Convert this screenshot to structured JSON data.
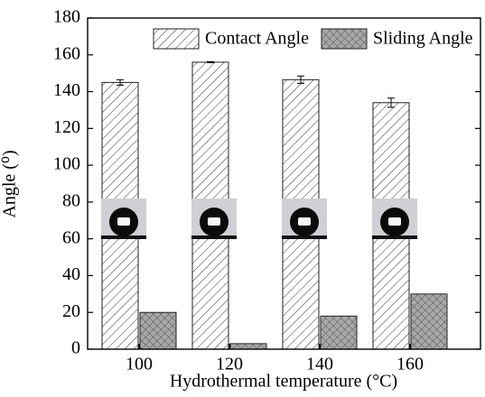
{
  "chart_data": {
    "type": "bar",
    "xlabel": "Hydrothermal temperature (°C)",
    "ylabel": "Angle (⁰)",
    "categories": [
      "100",
      "120",
      "140",
      "160"
    ],
    "series": [
      {
        "name": "Contact Angle",
        "color": "#ffffff",
        "hatch": "diagonal",
        "values": [
          145,
          156,
          146.5,
          134
        ],
        "errors": [
          1.5,
          0.3,
          2,
          2.5
        ]
      },
      {
        "name": "Sliding Angle",
        "color": "#a8a8a8",
        "hatch": "cross",
        "values": [
          20,
          3,
          18,
          30
        ]
      }
    ],
    "ylim": [
      0,
      180
    ],
    "yticks": [
      0,
      20,
      40,
      60,
      80,
      100,
      120,
      140,
      160,
      180
    ],
    "legend": "upper right"
  }
}
